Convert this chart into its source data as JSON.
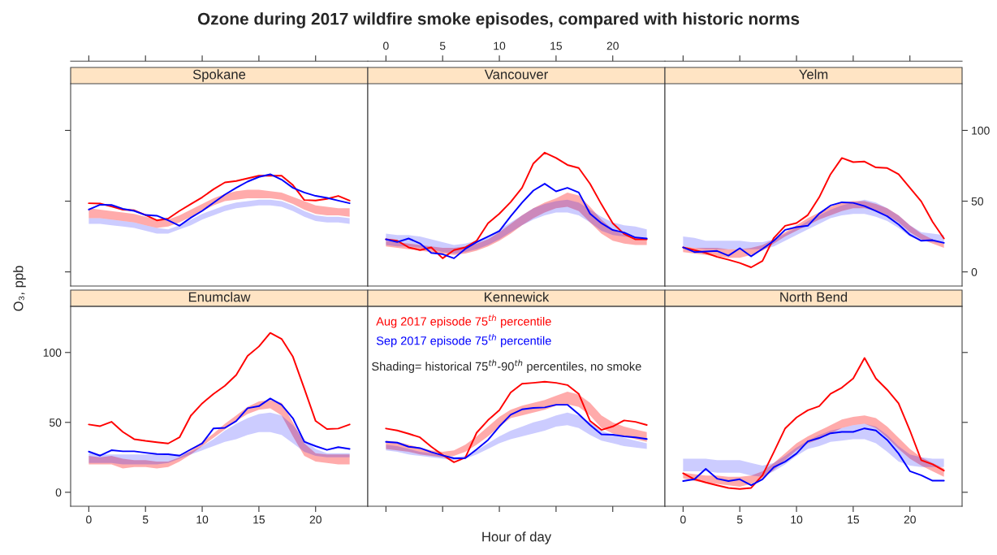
{
  "chart_data": [
    {
      "type": "line",
      "title": "Ozone during 2017 wildfire smoke episodes, compared with historic norms",
      "subtitle": "Spokane",
      "x": [
        0,
        1,
        2,
        3,
        4,
        5,
        6,
        7,
        8,
        9,
        10,
        11,
        12,
        13,
        14,
        15,
        16,
        17,
        18,
        19,
        20,
        21,
        22,
        23
      ],
      "xlim": [
        -1.6,
        24.6
      ],
      "ylim": [
        -10,
        133
      ],
      "xticks": [
        0,
        5,
        10,
        15,
        20
      ],
      "yticks": [
        0,
        50,
        100
      ],
      "tick_labels": false,
      "series": [
        {
          "color": "#ff0000",
          "values": [
            48.5,
            48.3,
            46.2,
            44.0,
            43.5,
            40.2,
            36.4,
            37.7,
            43.1,
            47.9,
            52.7,
            58.4,
            63.2,
            64.2,
            66.1,
            68,
            68,
            68,
            61.3,
            50.8,
            50.4,
            51.6,
            53.7,
            50.4
          ],
          "lower": [
            38,
            38,
            37,
            36,
            35,
            33,
            31,
            32,
            35,
            39,
            43,
            47,
            50,
            51,
            52,
            52,
            52,
            51,
            48,
            44,
            41,
            40,
            40,
            39
          ],
          "upper": [
            45,
            44,
            43,
            42,
            41,
            39,
            37,
            37,
            40,
            44,
            48,
            52,
            55,
            57,
            58,
            58,
            57,
            56,
            53,
            50,
            47,
            46,
            45,
            45
          ]
        },
        {
          "color": "#0000ff",
          "values": [
            44.0,
            47.5,
            47.3,
            44.6,
            43.1,
            40.2,
            39.7,
            36.4,
            32.6,
            38.3,
            43.1,
            48.9,
            54.6,
            59.4,
            63.8,
            67.1,
            69.0,
            65.2,
            59.4,
            56.1,
            53.7,
            52.3,
            50.4,
            48.5
          ],
          "lower": [
            34,
            34,
            33,
            32,
            31,
            29,
            27,
            27,
            30,
            33,
            37,
            40,
            43,
            45,
            46,
            47,
            47,
            46,
            43,
            39,
            36,
            35,
            35,
            34
          ],
          "upper": [
            38,
            38,
            37,
            36,
            35,
            33,
            31,
            30,
            33,
            37,
            41,
            44,
            47,
            49,
            50,
            51,
            51,
            50,
            47,
            43,
            40,
            39,
            39,
            38
          ]
        }
      ]
    },
    {
      "type": "line",
      "subtitle": "Vancouver",
      "x": [
        0,
        1,
        2,
        3,
        4,
        5,
        6,
        7,
        8,
        9,
        10,
        11,
        12,
        13,
        14,
        15,
        16,
        17,
        18,
        19,
        20,
        21,
        22,
        23
      ],
      "xlim": [
        -1.6,
        24.6
      ],
      "ylim": [
        -10,
        133
      ],
      "xticks": [
        0,
        5,
        10,
        15,
        20
      ],
      "tick_labels": "x",
      "series": [
        {
          "color": "#ff0000",
          "values": [
            23.0,
            22.0,
            17.3,
            15.4,
            17.3,
            9.6,
            15.4,
            17.3,
            22.0,
            34.4,
            41.1,
            49.4,
            59.4,
            76.6,
            84.3,
            80.5,
            75.6,
            73.4,
            62.2,
            47.8,
            34.4,
            26.8,
            23.0,
            23.0
          ],
          "lower": [
            18,
            17,
            16,
            15,
            14,
            13,
            12,
            13,
            15,
            18,
            22,
            27,
            33,
            38,
            42,
            45,
            46,
            43,
            35,
            27,
            22,
            20,
            19,
            19
          ],
          "upper": [
            22,
            21,
            20,
            19,
            18,
            17,
            17,
            18,
            20,
            23,
            28,
            34,
            40,
            45,
            49,
            52,
            56,
            54,
            46,
            37,
            30,
            26,
            24,
            23
          ]
        },
        {
          "color": "#0000ff",
          "values": [
            23.0,
            21.1,
            23.6,
            20.1,
            13.4,
            12.5,
            9.6,
            16.3,
            21.1,
            24.9,
            28.8,
            39.3,
            48.9,
            57.5,
            62.3,
            56.9,
            59.4,
            56.1,
            41.1,
            34.4,
            29.6,
            27.8,
            24.3,
            23.6
          ],
          "lower": [
            19,
            18,
            18,
            17,
            16,
            14,
            13,
            14,
            16,
            19,
            23,
            28,
            33,
            37,
            40,
            42,
            42,
            40,
            35,
            29,
            26,
            25,
            24,
            24
          ],
          "upper": [
            27,
            26,
            26,
            25,
            23,
            21,
            19,
            20,
            22,
            25,
            30,
            35,
            40,
            45,
            48,
            50,
            51,
            49,
            44,
            39,
            35,
            33,
            32,
            30
          ]
        }
      ]
    },
    {
      "type": "line",
      "subtitle": "Yelm",
      "x": [
        0,
        1,
        2,
        3,
        4,
        5,
        6,
        7,
        8,
        9,
        10,
        11,
        12,
        13,
        14,
        15,
        16,
        17,
        18,
        19,
        20,
        21,
        22,
        23
      ],
      "xlim": [
        -1.6,
        24.6
      ],
      "ylim": [
        -10,
        133
      ],
      "xticks": [
        0,
        5,
        10,
        15,
        20
      ],
      "yticks": [
        0,
        50,
        100
      ],
      "tick_labels": "y",
      "series": [
        {
          "color": "#ff0000",
          "values": [
            17.3,
            15.4,
            13.4,
            10.6,
            8.6,
            6.3,
            3.2,
            7.7,
            24.0,
            32.6,
            34.5,
            40.2,
            52.7,
            69.0,
            80.5,
            77.6,
            78.0,
            73.8,
            73.4,
            69.0,
            59.4,
            49.8,
            35.4,
            23.6
          ],
          "lower": [
            14,
            13,
            12,
            11,
            10,
            10,
            12,
            15,
            20,
            25,
            29,
            33,
            37,
            40,
            43,
            45,
            45,
            43,
            40,
            35,
            28,
            23,
            20,
            17
          ],
          "upper": [
            18,
            17,
            17,
            17,
            16,
            16,
            17,
            19,
            23,
            28,
            33,
            38,
            42,
            46,
            49,
            50,
            50,
            48,
            45,
            40,
            33,
            27,
            23,
            20
          ]
        },
        {
          "color": "#0000ff",
          "values": [
            17.3,
            14.0,
            14.4,
            14.8,
            11.5,
            16.7,
            11.0,
            16.3,
            22.0,
            29.7,
            31.6,
            32.6,
            41.2,
            46.9,
            49.2,
            48.8,
            46.5,
            43.1,
            39.3,
            33.5,
            26.2,
            22.0,
            22.4,
            20.5
          ],
          "lower": [
            18,
            17,
            16,
            16,
            16,
            16,
            16,
            16,
            18,
            22,
            26,
            30,
            34,
            38,
            40,
            41,
            41,
            39,
            36,
            31,
            25,
            22,
            21,
            20
          ],
          "upper": [
            25,
            24,
            22,
            22,
            22,
            22,
            21,
            21,
            23,
            27,
            31,
            36,
            40,
            44,
            47,
            49,
            51,
            49,
            45,
            40,
            33,
            28,
            27,
            26
          ]
        }
      ]
    },
    {
      "type": "line",
      "subtitle": "Enumclaw",
      "ylabel": "O₃, ppb",
      "x": [
        0,
        1,
        2,
        3,
        4,
        5,
        6,
        7,
        8,
        9,
        10,
        11,
        12,
        13,
        14,
        15,
        16,
        17,
        18,
        19,
        20,
        21,
        22,
        23
      ],
      "xlim": [
        -1.6,
        24.6
      ],
      "ylim": [
        -10,
        133
      ],
      "xticks": [
        0,
        5,
        10,
        15,
        20
      ],
      "yticks": [
        0,
        50,
        100
      ],
      "series": [
        {
          "color": "#ff0000",
          "values": [
            48.5,
            47.3,
            50.4,
            43.2,
            38.0,
            36.8,
            35.8,
            34.9,
            39.3,
            54.8,
            63.6,
            70.4,
            76.2,
            83.9,
            97.5,
            104.3,
            114.0,
            109.7,
            96.9,
            74.2,
            51.0,
            45.2,
            45.6,
            48.5
          ],
          "lower": [
            20,
            20,
            20,
            17,
            18,
            18,
            17,
            18,
            22,
            27,
            33,
            39,
            45,
            51,
            56,
            59,
            60,
            55,
            40,
            26,
            22,
            21,
            20,
            20
          ],
          "upper": [
            26,
            25,
            26,
            24,
            23,
            23,
            22,
            22,
            25,
            30,
            36,
            42,
            49,
            55,
            61,
            65,
            66,
            64,
            50,
            35,
            28,
            27,
            27,
            27
          ]
        },
        {
          "color": "#0000ff",
          "values": [
            29.1,
            26.2,
            30.1,
            29.3,
            29.3,
            28.3,
            27.4,
            27.2,
            26.2,
            30.7,
            35.0,
            45.7,
            46.1,
            51.0,
            60.1,
            61.6,
            67.1,
            62.6,
            52.9,
            36.1,
            33.0,
            30.3,
            32.3,
            31.0
          ],
          "lower": [
            21,
            21,
            21,
            20,
            20,
            20,
            20,
            21,
            24,
            27,
            30,
            33,
            36,
            38,
            41,
            43,
            43,
            41,
            35,
            29,
            26,
            25,
            25,
            25
          ],
          "upper": [
            28,
            27,
            27,
            27,
            27,
            27,
            27,
            27,
            27,
            29,
            33,
            38,
            44,
            49,
            53,
            56,
            57,
            55,
            48,
            38,
            31,
            28,
            28,
            28
          ]
        }
      ]
    },
    {
      "type": "line",
      "subtitle": "Kennewick",
      "xlabel": "Hour of day",
      "x": [
        0,
        1,
        2,
        3,
        4,
        5,
        6,
        7,
        8,
        9,
        10,
        11,
        12,
        13,
        14,
        15,
        16,
        17,
        18,
        19,
        20,
        21,
        22,
        23
      ],
      "xlim": [
        -1.6,
        24.6
      ],
      "ylim": [
        -10,
        133
      ],
      "xticks": [
        0,
        5,
        10,
        15,
        20
      ],
      "tick_labels": false,
      "legend": "top left",
      "annotations": [
        "Shading= historical 75$^{th}$-90$^{th}$ percentiles, no smoke"
      ],
      "series": [
        {
          "name": "Aug 2017 episode 75$^{th}$ percentile",
          "color": "#ff0000",
          "values": [
            45.6,
            44.2,
            41.9,
            39.3,
            32.6,
            26.7,
            21.5,
            24.8,
            42.6,
            51.6,
            58.7,
            71.4,
            77.6,
            78.3,
            79.1,
            78.3,
            76.7,
            70.4,
            51.0,
            44.6,
            47.1,
            51.4,
            50.4,
            48.1
          ],
          "lower": [
            31,
            30,
            29,
            27,
            26,
            25,
            26,
            29,
            34,
            40,
            47,
            53,
            55,
            57,
            59,
            62,
            63,
            61,
            55,
            46,
            42,
            40,
            38,
            36
          ],
          "upper": [
            37,
            36,
            34,
            32,
            30,
            29,
            30,
            34,
            40,
            47,
            54,
            59,
            62,
            64,
            66,
            69,
            72,
            70,
            64,
            55,
            50,
            47,
            45,
            43
          ]
        },
        {
          "name": "Sep 2017 episode 75$^{th}$ percentile",
          "color": "#0000ff",
          "values": [
            36.1,
            35.5,
            32.6,
            31.6,
            28.7,
            26.4,
            24.3,
            24.4,
            30.7,
            37.4,
            47.1,
            55.5,
            59.3,
            60.3,
            60.7,
            62.6,
            62.6,
            55.8,
            48.1,
            41.4,
            41.2,
            40.0,
            39.3,
            38.1
          ],
          "lower": [
            30,
            29,
            27,
            26,
            25,
            24,
            23,
            24,
            27,
            31,
            35,
            38,
            40,
            42,
            44,
            47,
            48,
            46,
            41,
            37,
            35,
            33,
            32,
            31
          ],
          "upper": [
            34,
            33,
            31,
            29,
            28,
            26,
            25,
            26,
            30,
            35,
            40,
            44,
            47,
            50,
            52,
            55,
            57,
            55,
            50,
            44,
            41,
            39,
            37,
            35
          ]
        }
      ]
    },
    {
      "type": "line",
      "subtitle": "North Bend",
      "x": [
        0,
        1,
        2,
        3,
        4,
        5,
        6,
        7,
        8,
        9,
        10,
        11,
        12,
        13,
        14,
        15,
        16,
        17,
        18,
        19,
        20,
        21,
        22,
        23
      ],
      "xlim": [
        -1.6,
        24.6
      ],
      "ylim": [
        -10,
        133
      ],
      "xticks": [
        0,
        5,
        10,
        15,
        20
      ],
      "yticks": [
        0,
        50,
        100
      ],
      "tick_labels": "x",
      "series": [
        {
          "color": "#ff0000",
          "values": [
            13.6,
            9.3,
            7.0,
            5.0,
            3.1,
            2.3,
            3.1,
            12.2,
            28.7,
            45.7,
            53.5,
            58.7,
            61.6,
            70.4,
            74.8,
            81.4,
            96.1,
            81.4,
            73.3,
            63.6,
            44.2,
            22.9,
            20.0,
            15.5
          ],
          "lower": [
            10,
            8,
            7,
            6,
            5,
            4,
            6,
            10,
            16,
            23,
            30,
            35,
            38,
            42,
            46,
            48,
            49,
            46,
            39,
            31,
            24,
            19,
            15,
            11
          ],
          "upper": [
            14,
            13,
            12,
            12,
            11,
            11,
            12,
            15,
            21,
            28,
            35,
            40,
            44,
            48,
            52,
            54,
            55,
            53,
            47,
            39,
            31,
            25,
            21,
            17
          ]
        },
        {
          "color": "#0000ff",
          "values": [
            8.0,
            9.3,
            16.7,
            9.7,
            8.0,
            9.3,
            5.0,
            9.3,
            18.0,
            21.9,
            27.7,
            36.4,
            38.8,
            42.2,
            43.2,
            43.2,
            45.7,
            44.2,
            37.4,
            27.7,
            15.1,
            12.2,
            8.3,
            8.3
          ],
          "lower": [
            15,
            15,
            15,
            14,
            14,
            14,
            12,
            11,
            15,
            20,
            26,
            31,
            33,
            36,
            37,
            38,
            38,
            35,
            29,
            22,
            19,
            18,
            18,
            18
          ],
          "upper": [
            24,
            24,
            24,
            23,
            23,
            23,
            21,
            19,
            21,
            26,
            32,
            37,
            41,
            44,
            46,
            48,
            49,
            47,
            41,
            33,
            27,
            25,
            24,
            24
          ]
        }
      ]
    }
  ]
}
